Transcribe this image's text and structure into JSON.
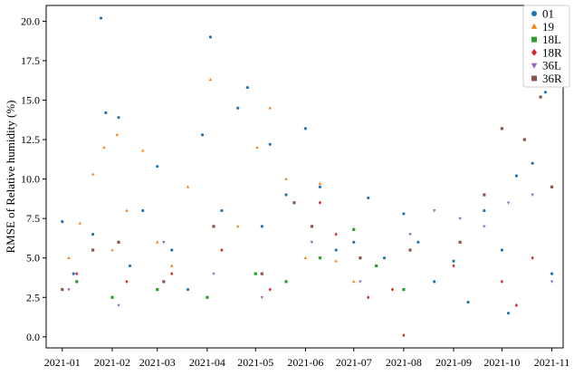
{
  "chart_data": {
    "type": "scatter",
    "title": "",
    "xlabel": "",
    "ylabel": "RMSE of Relative humidity (%)",
    "xlim": [
      "2020-12-22",
      "2021-11-08"
    ],
    "ylim": [
      -0.7,
      21.0
    ],
    "y_ticks": [
      0.0,
      2.5,
      5.0,
      7.5,
      10.0,
      12.5,
      15.0,
      17.5,
      20.0
    ],
    "x_ticks": [
      "2021-01",
      "2021-02",
      "2021-03",
      "2021-04",
      "2021-05",
      "2021-06",
      "2021-07",
      "2021-08",
      "2021-09",
      "2021-10",
      "2021-11"
    ],
    "grid": false,
    "legend_position": "top-right",
    "series": [
      {
        "name": "01",
        "color": "#1f77b4",
        "marker": "circle",
        "points": [
          [
            "2021-01-01",
            7.3
          ],
          [
            "2021-01-08",
            4.0
          ],
          [
            "2021-01-20",
            6.5
          ],
          [
            "2021-01-25",
            20.2
          ],
          [
            "2021-01-28",
            14.2
          ],
          [
            "2021-02-05",
            13.9
          ],
          [
            "2021-02-12",
            4.5
          ],
          [
            "2021-02-20",
            8.0
          ],
          [
            "2021-03-01",
            10.8
          ],
          [
            "2021-03-10",
            5.5
          ],
          [
            "2021-03-20",
            3.0
          ],
          [
            "2021-03-29",
            12.8
          ],
          [
            "2021-04-03",
            19.0
          ],
          [
            "2021-04-10",
            8.0
          ],
          [
            "2021-04-20",
            14.5
          ],
          [
            "2021-04-26",
            15.8
          ],
          [
            "2021-05-05",
            7.0
          ],
          [
            "2021-05-10",
            12.2
          ],
          [
            "2021-05-20",
            9.0
          ],
          [
            "2021-06-01",
            13.2
          ],
          [
            "2021-06-10",
            9.5
          ],
          [
            "2021-06-20",
            5.5
          ],
          [
            "2021-07-01",
            6.0
          ],
          [
            "2021-07-10",
            8.8
          ],
          [
            "2021-07-20",
            5.0
          ],
          [
            "2021-08-01",
            7.8
          ],
          [
            "2021-08-10",
            6.0
          ],
          [
            "2021-08-20",
            3.5
          ],
          [
            "2021-09-01",
            4.8
          ],
          [
            "2021-09-10",
            2.2
          ],
          [
            "2021-09-20",
            8.0
          ],
          [
            "2021-10-01",
            5.5
          ],
          [
            "2021-10-05",
            1.5
          ],
          [
            "2021-10-10",
            10.2
          ],
          [
            "2021-10-20",
            11.0
          ],
          [
            "2021-10-28",
            15.5
          ],
          [
            "2021-11-01",
            4.0
          ]
        ]
      },
      {
        "name": "19",
        "color": "#ff7f0e",
        "marker": "triangle-up",
        "points": [
          [
            "2021-01-05",
            5.0
          ],
          [
            "2021-01-12",
            7.2
          ],
          [
            "2021-01-20",
            10.3
          ],
          [
            "2021-01-27",
            12.0
          ],
          [
            "2021-02-01",
            5.5
          ],
          [
            "2021-02-04",
            12.8
          ],
          [
            "2021-02-10",
            8.0
          ],
          [
            "2021-02-20",
            11.8
          ],
          [
            "2021-03-01",
            6.0
          ],
          [
            "2021-03-10",
            4.5
          ],
          [
            "2021-03-20",
            9.5
          ],
          [
            "2021-04-03",
            16.3
          ],
          [
            "2021-04-10",
            5.5
          ],
          [
            "2021-04-20",
            7.0
          ],
          [
            "2021-05-02",
            12.0
          ],
          [
            "2021-05-10",
            14.5
          ],
          [
            "2021-05-20",
            10.0
          ],
          [
            "2021-06-01",
            5.0
          ],
          [
            "2021-06-10",
            9.7
          ],
          [
            "2021-06-20",
            4.8
          ],
          [
            "2021-07-01",
            3.5
          ]
        ]
      },
      {
        "name": "18L",
        "color": "#2ca02c",
        "marker": "square",
        "points": [
          [
            "2021-01-10",
            3.5
          ],
          [
            "2021-02-01",
            2.5
          ],
          [
            "2021-03-01",
            3.0
          ],
          [
            "2021-04-01",
            2.5
          ],
          [
            "2021-05-01",
            4.0
          ],
          [
            "2021-05-20",
            3.5
          ],
          [
            "2021-06-10",
            5.0
          ],
          [
            "2021-07-01",
            6.8
          ],
          [
            "2021-07-15",
            4.5
          ],
          [
            "2021-08-01",
            3.0
          ]
        ]
      },
      {
        "name": "18R",
        "color": "#d62728",
        "marker": "diamond",
        "points": [
          [
            "2021-01-10",
            4.0
          ],
          [
            "2021-02-10",
            3.5
          ],
          [
            "2021-03-10",
            4.0
          ],
          [
            "2021-04-10",
            5.5
          ],
          [
            "2021-05-10",
            3.0
          ],
          [
            "2021-06-10",
            8.5
          ],
          [
            "2021-06-20",
            6.5
          ],
          [
            "2021-07-10",
            2.5
          ],
          [
            "2021-07-25",
            3.0
          ],
          [
            "2021-08-01",
            0.1
          ],
          [
            "2021-09-01",
            4.5
          ],
          [
            "2021-10-01",
            3.5
          ],
          [
            "2021-10-10",
            2.0
          ],
          [
            "2021-10-20",
            5.0
          ]
        ]
      },
      {
        "name": "36L",
        "color": "#9467bd",
        "marker": "triangle-down",
        "points": [
          [
            "2021-01-05",
            3.0
          ],
          [
            "2021-02-05",
            2.0
          ],
          [
            "2021-03-05",
            6.0
          ],
          [
            "2021-04-05",
            4.0
          ],
          [
            "2021-05-05",
            2.5
          ],
          [
            "2021-06-05",
            6.0
          ],
          [
            "2021-07-05",
            3.5
          ],
          [
            "2021-08-05",
            6.5
          ],
          [
            "2021-08-20",
            8.0
          ],
          [
            "2021-09-05",
            7.5
          ],
          [
            "2021-09-20",
            7.0
          ],
          [
            "2021-10-05",
            8.5
          ],
          [
            "2021-10-20",
            9.0
          ],
          [
            "2021-11-01",
            3.5
          ]
        ]
      },
      {
        "name": "36R",
        "color": "#8c564b",
        "marker": "square",
        "points": [
          [
            "2021-01-01",
            3.0
          ],
          [
            "2021-01-20",
            5.5
          ],
          [
            "2021-02-05",
            6.0
          ],
          [
            "2021-03-05",
            3.5
          ],
          [
            "2021-04-05",
            7.0
          ],
          [
            "2021-05-05",
            4.0
          ],
          [
            "2021-05-25",
            8.5
          ],
          [
            "2021-06-05",
            7.0
          ],
          [
            "2021-07-05",
            5.0
          ],
          [
            "2021-08-05",
            5.5
          ],
          [
            "2021-09-05",
            6.0
          ],
          [
            "2021-09-20",
            9.0
          ],
          [
            "2021-10-01",
            13.2
          ],
          [
            "2021-10-15",
            12.5
          ],
          [
            "2021-10-25",
            15.2
          ],
          [
            "2021-11-01",
            9.5
          ]
        ]
      }
    ]
  }
}
